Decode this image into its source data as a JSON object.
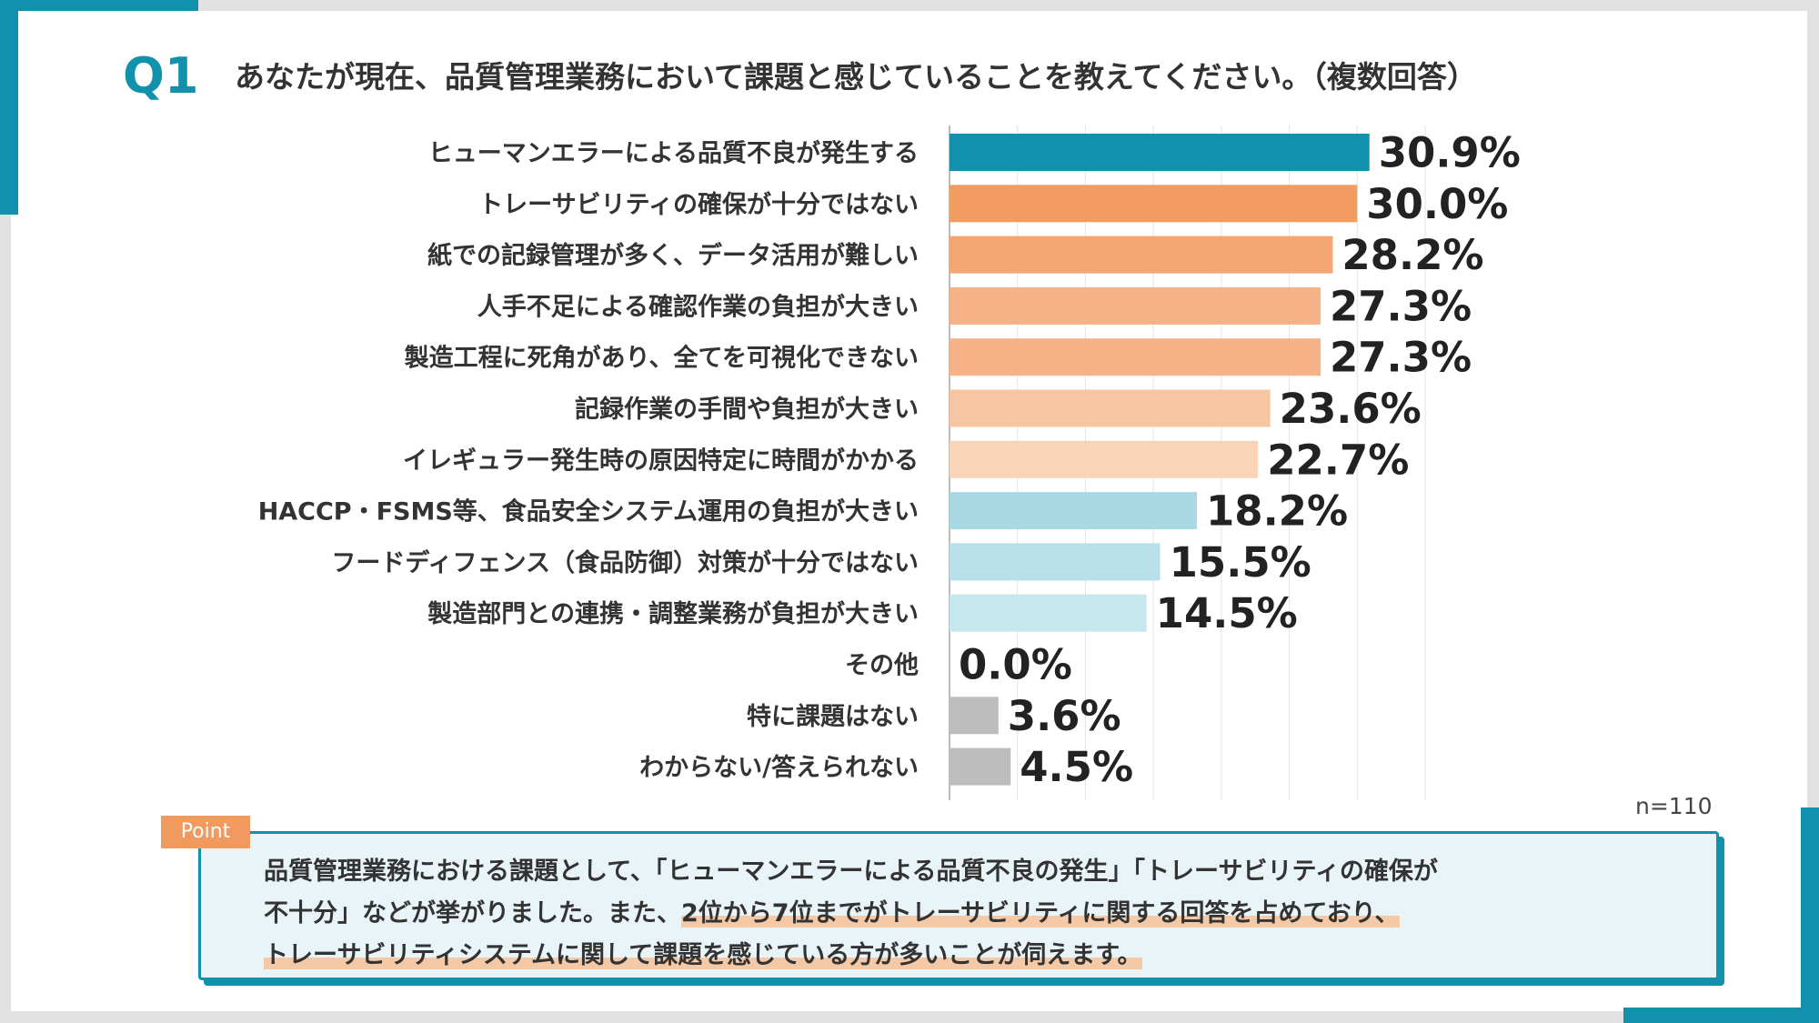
{
  "header": {
    "q_label": "Q1",
    "question": "あなたが現在、品質管理業務において課題と感じていることを教えてください。（複数回答）"
  },
  "chart_data": {
    "type": "bar",
    "orientation": "horizontal",
    "categories": [
      "ヒューマンエラーによる品質不良が発生する",
      "トレーサビリティの確保が十分ではない",
      "紙での記録管理が多く、データ活用が難しい",
      "人手不足による確認作業の負担が大きい",
      "製造工程に死角があり、全てを可視化できない",
      "記録作業の手間や負担が大きい",
      "イレギュラー発生時の原因特定に時間がかかる",
      "HACCP・FSMS等、食品安全システム運用の負担が大きい",
      "フードディフェンス（食品防御）対策が十分ではない",
      "製造部門との連携・調整業務が負担が大きい",
      "その他",
      "特に課題はない",
      "わからない/答えられない"
    ],
    "values": [
      30.9,
      30.0,
      28.2,
      27.3,
      27.3,
      23.6,
      22.7,
      18.2,
      15.5,
      14.5,
      0.0,
      3.6,
      4.5
    ],
    "value_labels": [
      "30.9%",
      "30.0%",
      "28.2%",
      "27.3%",
      "27.3%",
      "23.6%",
      "22.7%",
      "18.2%",
      "15.5%",
      "14.5%",
      "0.0%",
      "3.6%",
      "4.5%"
    ],
    "colors": [
      "#1291ac",
      "#f39c62",
      "#f4a673",
      "#f5b286",
      "#f5b286",
      "#f7c5a2",
      "#f9d4b9",
      "#a9dae4",
      "#b7e0e9",
      "#c7e7ee",
      "#c7e7ee",
      "#bdbdbd",
      "#bdbdbd"
    ],
    "xlim": [
      0,
      35
    ],
    "grid": true,
    "unit": "%"
  },
  "sample_size": "n=110",
  "point": {
    "tag": "Point",
    "line1": "品質管理業務における課題として、「ヒューマンエラーによる品質不良の発生」「トレーサビリティの確保が",
    "line2_plain": "不十分」などが挙がりました。また、",
    "line2_highlight": "2位から7位までがトレーサビリティに関する回答を占めており、",
    "line3_highlight": "トレーサビリティシステムに関して課題を感じている方が多いことが伺えます。"
  },
  "theme": {
    "accent": "#1291ac",
    "orange": "#f39c62",
    "gray": "#bdbdbd"
  }
}
